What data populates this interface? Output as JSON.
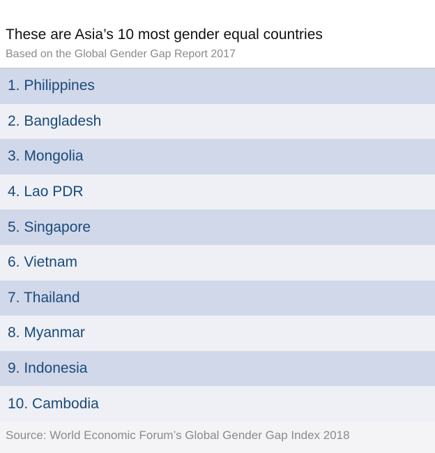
{
  "chart_data": {
    "type": "table",
    "title": "These are Asia’s 10 most gender equal countries",
    "subtitle": "Based on the Global Gender Gap Report 2017",
    "rows": [
      {
        "rank": 1,
        "label": "1. Philippines"
      },
      {
        "rank": 2,
        "label": "2. Bangladesh"
      },
      {
        "rank": 3,
        "label": "3. Mongolia"
      },
      {
        "rank": 4,
        "label": "4. Lao PDR"
      },
      {
        "rank": 5,
        "label": "5. Singapore"
      },
      {
        "rank": 6,
        "label": "6. Vietnam"
      },
      {
        "rank": 7,
        "label": "7. Thailand"
      },
      {
        "rank": 8,
        "label": "8. Myanmar"
      },
      {
        "rank": 9,
        "label": "9. Indonesia"
      },
      {
        "rank": 10,
        "label": "10. Cambodia"
      }
    ],
    "source": "Source: World Economic Forum’s Global Gender Gap Index 2018",
    "colors": {
      "row_odd": "#d1d8ea",
      "row_even": "#eef0f5",
      "row_text": "#1a4a7a",
      "title_text": "#111111",
      "muted_text": "#8a8a8a"
    }
  }
}
